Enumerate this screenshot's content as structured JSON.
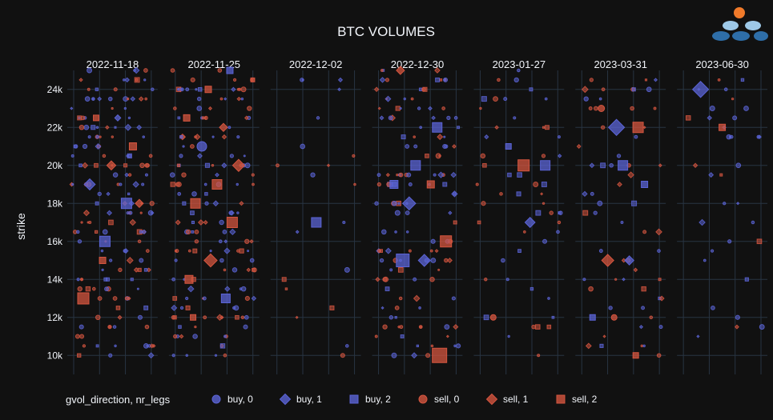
{
  "chart_data": {
    "type": "scatter",
    "title": "BTC VOLUMES",
    "ylabel": "strike",
    "ylim": [
      9000,
      25000
    ],
    "yticks": [
      10000,
      12000,
      14000,
      16000,
      18000,
      20000,
      22000,
      24000
    ],
    "ytick_labels": [
      "10k",
      "12k",
      "14k",
      "16k",
      "18k",
      "20k",
      "22k",
      "24k"
    ],
    "panels": [
      "2022-11-18",
      "2022-11-25",
      "2022-12-02",
      "2022-12-30",
      "2023-01-27",
      "2023-03-31",
      "2023-06-30"
    ],
    "legend_title": "gvol_direction, nr_legs",
    "legend_position": "bottom",
    "legend": [
      {
        "label": "buy, 0",
        "direction": "buy",
        "legs": 0,
        "symbol": "circle"
      },
      {
        "label": "buy, 1",
        "direction": "buy",
        "legs": 1,
        "symbol": "diamond"
      },
      {
        "label": "buy, 2",
        "direction": "buy",
        "legs": 2,
        "symbol": "square"
      },
      {
        "label": "sell, 0",
        "direction": "sell",
        "legs": 0,
        "symbol": "circle"
      },
      {
        "label": "sell, 1",
        "direction": "sell",
        "legs": 1,
        "symbol": "diamond"
      },
      {
        "label": "sell, 2",
        "direction": "sell",
        "legs": 2,
        "symbol": "square"
      }
    ],
    "colors": {
      "buy": "#5b64d6",
      "sell": "#d4553f",
      "background": "#111111",
      "grid": "#283442"
    },
    "highlight_points": [
      {
        "panel": 0,
        "strike": 13000,
        "direction": "sell",
        "legs": 2,
        "size": 14
      },
      {
        "panel": 0,
        "strike": 16000,
        "direction": "buy",
        "legs": 2,
        "size": 13
      },
      {
        "panel": 0,
        "strike": 18000,
        "direction": "buy",
        "legs": 2,
        "size": 13
      },
      {
        "panel": 0,
        "strike": 19000,
        "direction": "buy",
        "legs": 1,
        "size": 11
      },
      {
        "panel": 0,
        "strike": 20000,
        "direction": "sell",
        "legs": 1,
        "size": 9
      },
      {
        "panel": 0,
        "strike": 21000,
        "direction": "sell",
        "legs": 2,
        "size": 9
      },
      {
        "panel": 0,
        "strike": 22500,
        "direction": "sell",
        "legs": 2,
        "size": 7
      },
      {
        "panel": 0,
        "strike": 22500,
        "direction": "buy",
        "legs": 1,
        "size": 6
      },
      {
        "panel": 0,
        "strike": 18000,
        "direction": "sell",
        "legs": 1,
        "size": 8
      },
      {
        "panel": 0,
        "strike": 15000,
        "direction": "sell",
        "legs": 2,
        "size": 8
      },
      {
        "panel": 1,
        "strike": 13000,
        "direction": "buy",
        "legs": 2,
        "size": 11
      },
      {
        "panel": 1,
        "strike": 14000,
        "direction": "sell",
        "legs": 2,
        "size": 10
      },
      {
        "panel": 1,
        "strike": 15000,
        "direction": "sell",
        "legs": 1,
        "size": 13
      },
      {
        "panel": 1,
        "strike": 17000,
        "direction": "sell",
        "legs": 2,
        "size": 13
      },
      {
        "panel": 1,
        "strike": 18000,
        "direction": "sell",
        "legs": 2,
        "size": 12
      },
      {
        "panel": 1,
        "strike": 19000,
        "direction": "sell",
        "legs": 2,
        "size": 12
      },
      {
        "panel": 1,
        "strike": 20000,
        "direction": "sell",
        "legs": 1,
        "size": 12
      },
      {
        "panel": 1,
        "strike": 21000,
        "direction": "buy",
        "legs": 0,
        "size": 12
      },
      {
        "panel": 1,
        "strike": 22000,
        "direction": "sell",
        "legs": 1,
        "size": 8
      },
      {
        "panel": 1,
        "strike": 22500,
        "direction": "sell",
        "legs": 2,
        "size": 8
      },
      {
        "panel": 1,
        "strike": 24000,
        "direction": "sell",
        "legs": 2,
        "size": 8
      },
      {
        "panel": 1,
        "strike": 25000,
        "direction": "buy",
        "legs": 2,
        "size": 8
      },
      {
        "panel": 1,
        "strike": 12000,
        "direction": "sell",
        "legs": 2,
        "size": 7
      },
      {
        "panel": 2,
        "strike": 17000,
        "direction": "buy",
        "legs": 2,
        "size": 12
      },
      {
        "panel": 3,
        "strike": 10000,
        "direction": "sell",
        "legs": 2,
        "size": 18
      },
      {
        "panel": 3,
        "strike": 15000,
        "direction": "buy",
        "legs": 2,
        "size": 16
      },
      {
        "panel": 3,
        "strike": 15000,
        "direction": "buy",
        "legs": 1,
        "size": 12
      },
      {
        "panel": 3,
        "strike": 16000,
        "direction": "sell",
        "legs": 2,
        "size": 14
      },
      {
        "panel": 3,
        "strike": 18000,
        "direction": "buy",
        "legs": 1,
        "size": 13
      },
      {
        "panel": 3,
        "strike": 19000,
        "direction": "sell",
        "legs": 2,
        "size": 9
      },
      {
        "panel": 3,
        "strike": 19000,
        "direction": "buy",
        "legs": 2,
        "size": 10
      },
      {
        "panel": 3,
        "strike": 20000,
        "direction": "buy",
        "legs": 2,
        "size": 12
      },
      {
        "panel": 3,
        "strike": 22000,
        "direction": "buy",
        "legs": 2,
        "size": 12
      },
      {
        "panel": 3,
        "strike": 25000,
        "direction": "sell",
        "legs": 1,
        "size": 8
      },
      {
        "panel": 4,
        "strike": 20000,
        "direction": "sell",
        "legs": 2,
        "size": 14
      },
      {
        "panel": 4,
        "strike": 20000,
        "direction": "buy",
        "legs": 2,
        "size": 12
      },
      {
        "panel": 4,
        "strike": 21000,
        "direction": "buy",
        "legs": 2,
        "size": 7
      },
      {
        "panel": 4,
        "strike": 17000,
        "direction": "buy",
        "legs": 1,
        "size": 10
      },
      {
        "panel": 4,
        "strike": 12000,
        "direction": "sell",
        "legs": 0,
        "size": 7
      },
      {
        "panel": 5,
        "strike": 22000,
        "direction": "buy",
        "legs": 1,
        "size": 16
      },
      {
        "panel": 5,
        "strike": 22000,
        "direction": "sell",
        "legs": 2,
        "size": 13
      },
      {
        "panel": 5,
        "strike": 23000,
        "direction": "sell",
        "legs": 0,
        "size": 8
      },
      {
        "panel": 5,
        "strike": 20000,
        "direction": "buy",
        "legs": 2,
        "size": 12
      },
      {
        "panel": 5,
        "strike": 19000,
        "direction": "buy",
        "legs": 2,
        "size": 8
      },
      {
        "panel": 5,
        "strike": 15000,
        "direction": "sell",
        "legs": 1,
        "size": 12
      },
      {
        "panel": 5,
        "strike": 15000,
        "direction": "buy",
        "legs": 1,
        "size": 9
      },
      {
        "panel": 5,
        "strike": 12000,
        "direction": "buy",
        "legs": 2,
        "size": 7
      },
      {
        "panel": 5,
        "strike": 12000,
        "direction": "sell",
        "legs": 0,
        "size": 7
      },
      {
        "panel": 5,
        "strike": 10000,
        "direction": "sell",
        "legs": 2,
        "size": 7
      },
      {
        "panel": 6,
        "strike": 24000,
        "direction": "buy",
        "legs": 1,
        "size": 16
      },
      {
        "panel": 6,
        "strike": 22000,
        "direction": "sell",
        "legs": 2,
        "size": 8
      }
    ],
    "density": [
      0.95,
      0.9,
      0.12,
      0.75,
      0.3,
      0.35,
      0.2
    ]
  }
}
